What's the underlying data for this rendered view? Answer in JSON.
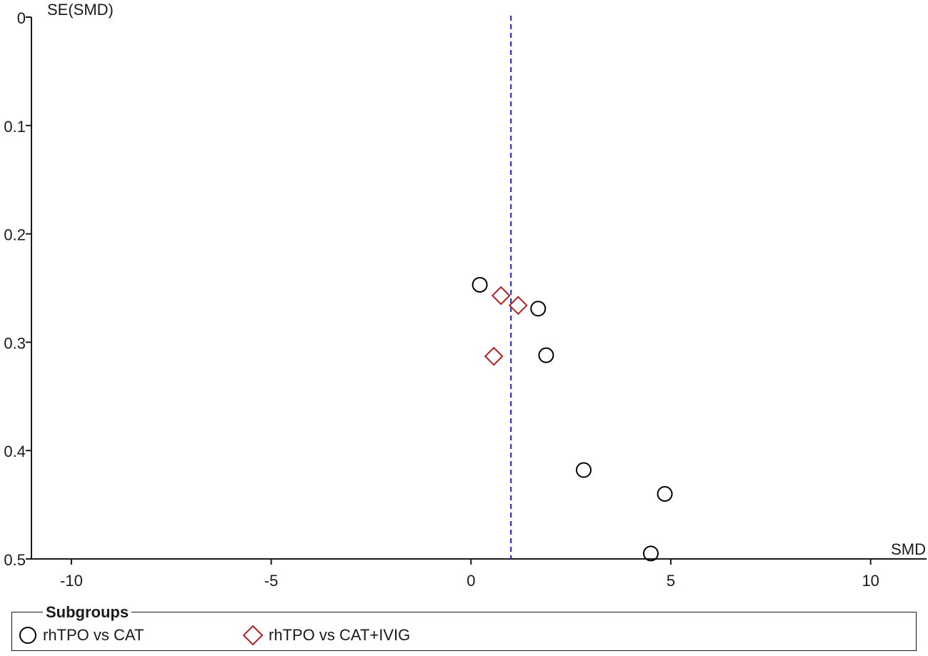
{
  "chart_data": {
    "type": "scatter",
    "xlabel": "SMD",
    "ylabel": "SE(SMD)",
    "xlim": [
      -11,
      11.4
    ],
    "ylim": [
      0,
      0.5
    ],
    "y_reversed": true,
    "x_ticks": [
      -10,
      -5,
      0,
      5,
      10
    ],
    "y_ticks": [
      0,
      0.1,
      0.2,
      0.3,
      0.4,
      0.5
    ],
    "x_tick_labels": [
      "-10",
      "-5",
      "0",
      "5",
      "10"
    ],
    "y_tick_labels": [
      "0",
      "0.1",
      "0.2",
      "0.3",
      "0.4",
      "0.5"
    ],
    "reference_line": {
      "x": 1.0,
      "style": "dashed",
      "color": "#1f1fcc"
    },
    "legend_title": "Subgroups",
    "legend_position": "bottom",
    "series": [
      {
        "name": "rhTPO vs CAT",
        "marker": "circle",
        "color": "#000000",
        "points": [
          {
            "x": 0.22,
            "y": 0.247
          },
          {
            "x": 1.68,
            "y": 0.269
          },
          {
            "x": 1.88,
            "y": 0.312
          },
          {
            "x": 2.82,
            "y": 0.418
          },
          {
            "x": 4.85,
            "y": 0.44
          },
          {
            "x": 4.5,
            "y": 0.495
          }
        ]
      },
      {
        "name": "rhTPO vs CAT+IVIG",
        "marker": "diamond",
        "color": "#b22222",
        "points": [
          {
            "x": 0.75,
            "y": 0.257
          },
          {
            "x": 1.18,
            "y": 0.266
          },
          {
            "x": 0.57,
            "y": 0.313
          }
        ]
      }
    ]
  }
}
